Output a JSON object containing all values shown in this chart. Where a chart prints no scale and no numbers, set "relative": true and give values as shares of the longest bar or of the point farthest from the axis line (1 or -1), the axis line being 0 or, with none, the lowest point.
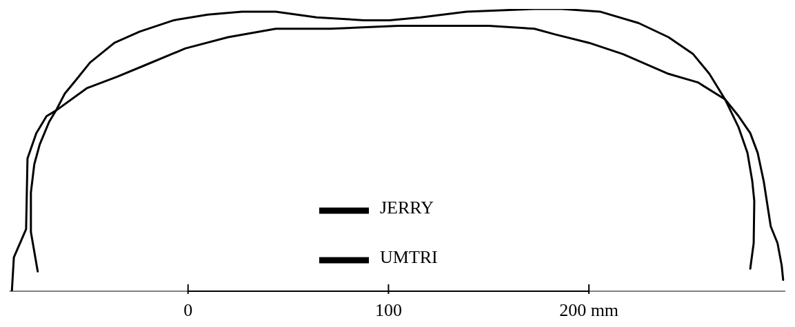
{
  "chart_data": {
    "type": "line",
    "relative": true,
    "xlim": [
      -89,
      298
    ],
    "xticks": [
      0,
      100,
      {
        "value": 200,
        "label": "200 mm"
      }
    ],
    "legend": "bottom",
    "grid": false,
    "series": [
      {
        "name": "JERRY",
        "color": "#000000",
        "x": [
          -75.0,
          -78.4,
          -78.4,
          -76.7,
          -74.0,
          -69.3,
          -65.9,
          -61.5,
          -55.7,
          -48.9,
          -36.7,
          -24.1,
          -7.1,
          9.8,
          26.8,
          43.8,
          64.2,
          87.9,
          100.5,
          116.1,
          138.9,
          172.8,
          186.4,
          205.8,
          224.8,
          239.7,
          252.0,
          260.1,
          267.9,
          274.7,
          279.1,
          281.5,
          282.5,
          282.2,
          280.5
        ],
        "values": [
          0.07,
          0.21,
          0.35,
          0.45,
          0.52,
          0.6,
          0.64,
          0.7,
          0.75,
          0.81,
          0.88,
          0.92,
          0.96,
          0.98,
          0.99,
          0.99,
          0.97,
          0.96,
          0.96,
          0.97,
          0.99,
          1.0,
          1.0,
          0.99,
          0.95,
          0.9,
          0.84,
          0.77,
          0.68,
          0.58,
          0.49,
          0.39,
          0.32,
          0.17,
          0.08
        ]
      },
      {
        "name": "UMTRI",
        "color": "#000000",
        "x": [
          -87.9,
          -86.9,
          -80.8,
          -80.1,
          -75.7,
          -70.6,
          -65.9,
          -50.3,
          -35.3,
          -21.7,
          -1.4,
          20.0,
          43.8,
          71.0,
          104.9,
          133.1,
          150.1,
          172.8,
          183.0,
          200.0,
          217.0,
          239.7,
          254.3,
          267.9,
          274.7,
          280.5,
          284.2,
          287.2,
          290.7,
          294.1,
          296.2,
          296.9
        ],
        "values": [
          0.0,
          0.12,
          0.22,
          0.47,
          0.56,
          0.62,
          0.64,
          0.72,
          0.76,
          0.8,
          0.86,
          0.9,
          0.93,
          0.93,
          0.94,
          0.94,
          0.94,
          0.93,
          0.91,
          0.88,
          0.84,
          0.77,
          0.74,
          0.68,
          0.62,
          0.56,
          0.49,
          0.39,
          0.23,
          0.17,
          0.09,
          0.04
        ]
      }
    ]
  }
}
